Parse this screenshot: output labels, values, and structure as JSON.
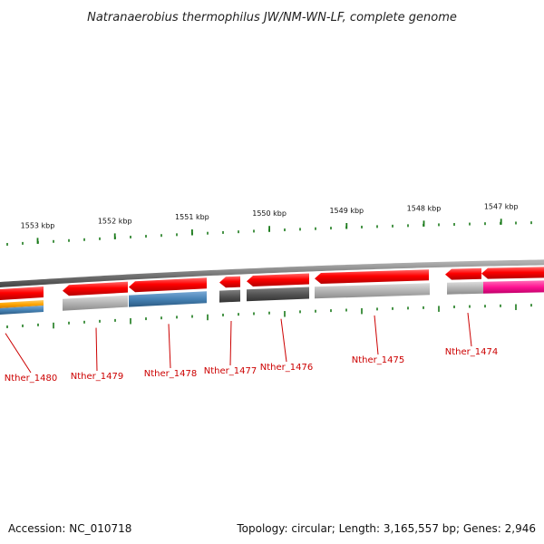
{
  "title": "Natranaerobius thermophilus JW/NM-WN-LF, complete genome",
  "footer": {
    "accession": "Accession: NC_010718",
    "summary": "Topology: circular; Length: 3,165,557 bp; Genes: 2,946"
  },
  "colors": {
    "red": "#ff0000",
    "grey": "#b4b4b4",
    "dark": "#555555",
    "blue": "#4682b4",
    "orange": "#ffa500",
    "magenta": "#ff1493",
    "tick": "#1a7a1a",
    "backbone": "#7a7a7a",
    "label": "#cc0000"
  },
  "ruler": [
    {
      "label": "1553 kbp",
      "kbp": 1553
    },
    {
      "label": "1552 kbp",
      "kbp": 1552
    },
    {
      "label": "1551 kbp",
      "kbp": 1551
    },
    {
      "label": "1550 kbp",
      "kbp": 1550
    },
    {
      "label": "1549 kbp",
      "kbp": 1549
    },
    {
      "label": "1548 kbp",
      "kbp": 1548
    },
    {
      "label": "1547 kbp",
      "kbp": 1547
    }
  ],
  "genes": [
    {
      "label": "Nther_1480"
    },
    {
      "label": "Nther_1479"
    },
    {
      "label": "Nther_1478"
    },
    {
      "label": "Nther_1477"
    },
    {
      "label": "Nther_1476"
    },
    {
      "label": "Nther_1475"
    },
    {
      "label": "Nther_1474"
    }
  ]
}
